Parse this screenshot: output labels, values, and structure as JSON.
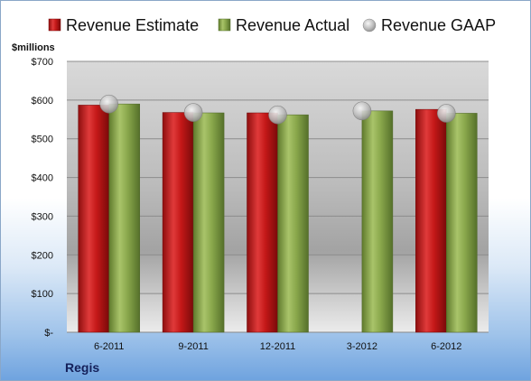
{
  "chart_data": {
    "type": "bar",
    "unit_label": "$millions",
    "company": "Regis",
    "categories": [
      "6-2011",
      "9-2011",
      "12-2011",
      "3-2012",
      "6-2012"
    ],
    "y_ticks": [
      {
        "value": 0,
        "label": "$-"
      },
      {
        "value": 100,
        "label": "$100"
      },
      {
        "value": 200,
        "label": "$200"
      },
      {
        "value": 300,
        "label": "$300"
      },
      {
        "value": 400,
        "label": "$400"
      },
      {
        "value": 500,
        "label": "$500"
      },
      {
        "value": 600,
        "label": "$600"
      },
      {
        "value": 700,
        "label": "$700"
      }
    ],
    "ylim": [
      0,
      700
    ],
    "grid": true,
    "legend_position": "top",
    "series": [
      {
        "name": "Revenue Estimate",
        "kind": "bar",
        "color": "#cc1f1f",
        "values": [
          587,
          568,
          567,
          null,
          576
        ]
      },
      {
        "name": "Revenue Actual",
        "kind": "bar",
        "color": "#8fae52",
        "values": [
          590,
          567,
          562,
          572,
          566
        ]
      },
      {
        "name": "Revenue GAAP",
        "kind": "marker",
        "color": "#b8b8b8",
        "values": [
          590,
          568,
          562,
          572,
          566
        ]
      }
    ]
  }
}
